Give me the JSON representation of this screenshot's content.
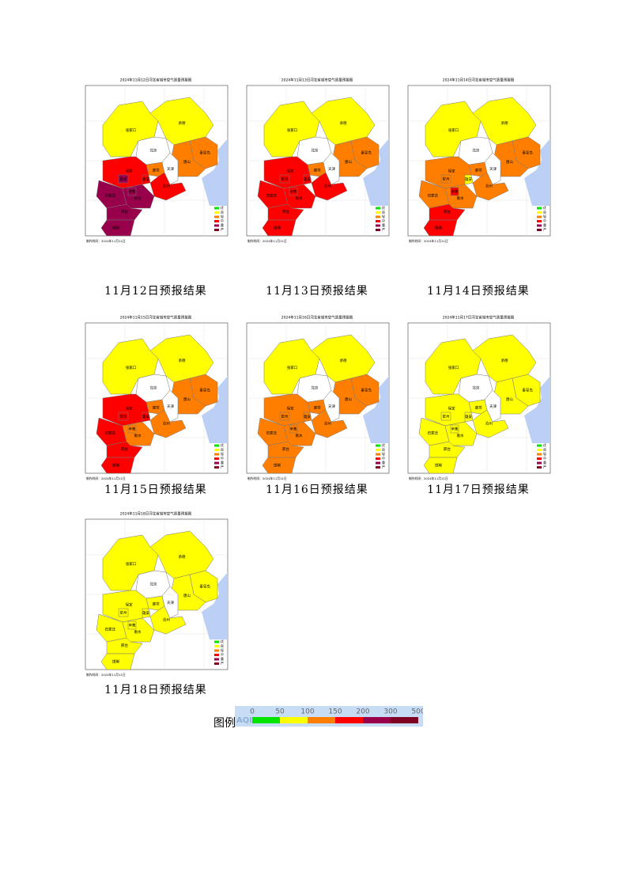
{
  "levels": [
    {
      "name": "优",
      "color": "#00e400"
    },
    {
      "name": "良",
      "color": "#ffff00"
    },
    {
      "name": "轻",
      "color": "#ff7e00"
    },
    {
      "name": "中",
      "color": "#ff0000"
    },
    {
      "name": "重",
      "color": "#99004c"
    },
    {
      "name": "严",
      "color": "#7e0023"
    }
  ],
  "cities": [
    "张家口",
    "承德",
    "秦皇岛",
    "唐山",
    "廊坊",
    "保定",
    "雄安",
    "沧州",
    "石家庄",
    "衡水",
    "邢台",
    "邯郸",
    "定州",
    "辛集",
    "北京",
    "天津"
  ],
  "maps": [
    {
      "title": "2024年11月12日河北省城市空气质量预报图",
      "footer": "制作时间：2024年11月11日",
      "caption": "11月12日预报结果",
      "city_levels": [
        1,
        1,
        2,
        2,
        2,
        3,
        3,
        3,
        4,
        4,
        4,
        4,
        4,
        4,
        null,
        null
      ]
    },
    {
      "title": "2024年11月13日河北省城市空气质量预报图",
      "footer": "制作时间：2024年11月11日",
      "caption": "11月13日预报结果",
      "city_levels": [
        1,
        1,
        2,
        2,
        2,
        3,
        3,
        3,
        3,
        3,
        3,
        3,
        3,
        3,
        null,
        null
      ]
    },
    {
      "title": "2024年11月14日河北省城市空气质量预报图",
      "footer": "制作时间：2024年11月11日",
      "caption": "11月14日预报结果",
      "city_levels": [
        1,
        1,
        2,
        2,
        2,
        2,
        1,
        2,
        2,
        2,
        3,
        3,
        2,
        3,
        null,
        null
      ]
    },
    {
      "title": "2024年11月15日河北省城市空气质量预报图",
      "footer": "制作时间：2024年11月11日",
      "caption": "11月15日预报结果",
      "city_levels": [
        1,
        1,
        2,
        2,
        2,
        3,
        3,
        2,
        3,
        2,
        3,
        3,
        3,
        2,
        null,
        null
      ]
    },
    {
      "title": "2024年11月16日河北省城市空气质量预报图",
      "footer": "制作时间：2024年11月11日",
      "caption": "11月16日预报结果",
      "city_levels": [
        1,
        1,
        2,
        2,
        2,
        2,
        2,
        2,
        2,
        2,
        2,
        2,
        2,
        2,
        null,
        null
      ]
    },
    {
      "title": "2024年11月17日河北省城市空气质量预报图",
      "footer": "制作时间：2024年11月11日",
      "caption": "11月17日预报结果",
      "city_levels": [
        1,
        1,
        1,
        1,
        1,
        1,
        1,
        1,
        1,
        1,
        1,
        1,
        1,
        1,
        null,
        null
      ]
    },
    {
      "title": "2024年11月18日河北省城市空气质量预报图",
      "footer": "制作时间：2024年11月11日",
      "caption": "11月18日预报结果",
      "city_levels": [
        1,
        1,
        1,
        1,
        1,
        1,
        1,
        1,
        1,
        1,
        1,
        1,
        1,
        1,
        null,
        null
      ]
    }
  ],
  "legend": {
    "label": "图例",
    "scale_name": "AQI",
    "ticks": [
      0,
      50,
      100,
      150,
      200,
      300,
      500
    ]
  }
}
